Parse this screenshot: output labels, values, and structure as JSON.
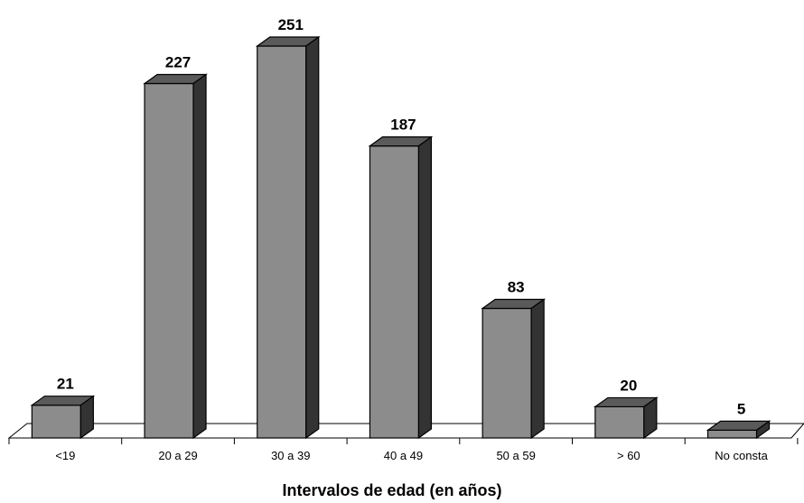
{
  "chart_data": {
    "type": "bar",
    "style": "3d",
    "categories": [
      "<19",
      "20 a 29",
      "30 a 39",
      "40 a 49",
      "50 a 59",
      "> 60",
      "No consta"
    ],
    "values": [
      21,
      227,
      251,
      187,
      83,
      20,
      5
    ],
    "xlabel": "Intervalos de edad (en años)",
    "ylabel": "",
    "ylim": [
      0,
      251
    ],
    "grid": false,
    "legend": "none",
    "colors": {
      "bar_front": "#8c8c8c",
      "bar_top": "#5a5a5a",
      "bar_side": "#333333",
      "outline": "#000000"
    }
  }
}
